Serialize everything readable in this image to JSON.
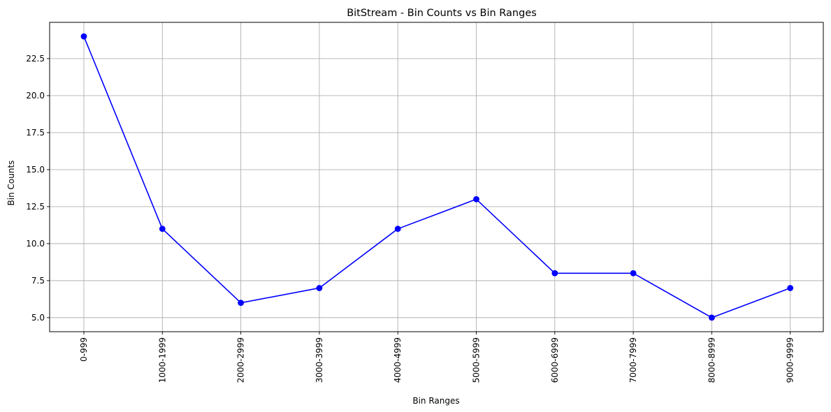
{
  "chart_data": {
    "type": "line",
    "title": "BitStream - Bin Counts vs Bin Ranges",
    "xlabel": "Bin Ranges",
    "ylabel": "Bin Counts",
    "categories": [
      "0-999",
      "1000-1999",
      "2000-2999",
      "3000-3999",
      "4000-4999",
      "5000-5999",
      "6000-6999",
      "7000-7999",
      "8000-8999",
      "9000-9999"
    ],
    "series": [
      {
        "values": [
          24,
          11,
          6,
          7,
          11,
          13,
          8,
          8,
          5,
          7
        ],
        "color": "#0000ff",
        "marker": "circle"
      }
    ],
    "ylim": [
      4.05,
      24.95
    ],
    "yticks": [
      5.0,
      7.5,
      10.0,
      12.5,
      15.0,
      17.5,
      20.0,
      22.5
    ],
    "ytick_labels": [
      "5.0",
      "7.5",
      "10.0",
      "12.5",
      "15.0",
      "17.5",
      "20.0",
      "22.5"
    ],
    "grid": true,
    "grid_color": "#b0b0b0",
    "x_tick_rotation": "vertical"
  }
}
